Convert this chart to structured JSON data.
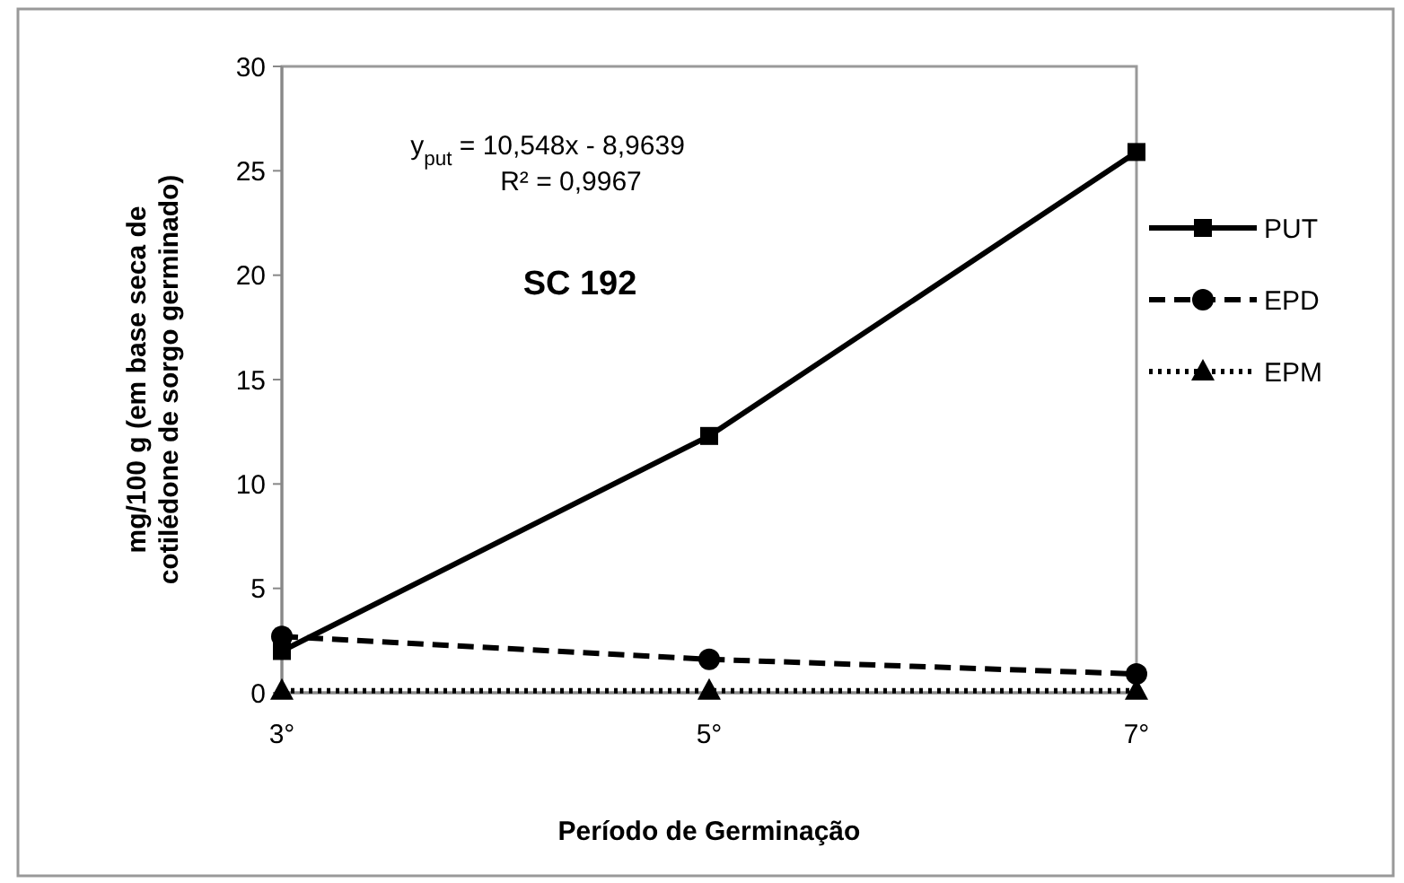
{
  "chart_data": {
    "type": "line",
    "xlabel": "Período de Germinação",
    "ylabel": "mg/100 g (em base seca de cotilédone de sorgo germinado)",
    "categories": [
      "3°",
      "5°",
      "7°"
    ],
    "series": [
      {
        "name": "PUT",
        "color": "#000000",
        "values": [
          2.0,
          12.3,
          25.9
        ],
        "marker": "square",
        "line_style": "solid"
      },
      {
        "name": "EPD",
        "color": "#000000",
        "values": [
          2.7,
          1.6,
          0.9
        ],
        "marker": "circle",
        "line_style": "dashed"
      },
      {
        "name": "EPM",
        "color": "#000000",
        "values": [
          0.1,
          0.1,
          0.1
        ],
        "marker": "triangle",
        "line_style": "dotted"
      }
    ],
    "ylim": [
      0,
      30
    ],
    "yticks": [
      0,
      5,
      10,
      15,
      20,
      25,
      30
    ],
    "grid": false,
    "legend": "right",
    "annotations": [
      "y$_{put}$ = 10,548x - 8,9639",
      "R² = 0,9967",
      "SC 192"
    ]
  }
}
